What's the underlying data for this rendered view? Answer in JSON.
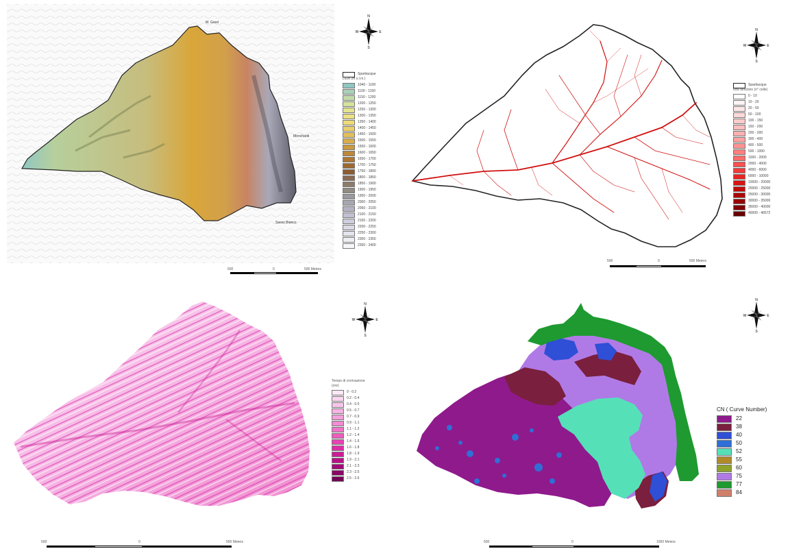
{
  "panels": {
    "elevation": {
      "legend_boundary": "Spartiacque",
      "legend_title": "DEM (m s.l.m.)",
      "classes": [
        "1040 - 1100",
        "1100 - 1150",
        "1150 - 1200",
        "1200 - 1250",
        "1250 - 1300",
        "1300 - 1350",
        "1350 - 1400",
        "1400 - 1450",
        "1450 - 1500",
        "1500 - 1550",
        "1550 - 1600",
        "1600 - 1650",
        "1650 - 1700",
        "1700 - 1750",
        "1750 - 1800",
        "1800 - 1850",
        "1850 - 1900",
        "1900 - 1950",
        "1950 - 2000",
        "2000 - 2050",
        "2050 - 2100",
        "2100 - 2150",
        "2150 - 2200",
        "2200 - 2250",
        "2250 - 2300",
        "2300 - 2350",
        "2350 - 2400"
      ],
      "colors": [
        "#8fc7c3",
        "#a9d1b8",
        "#c2dbaa",
        "#d6e39c",
        "#e4e48e",
        "#ece183",
        "#eedb78",
        "#ead06a",
        "#e2c05a",
        "#d8ad4a",
        "#cb9a3e",
        "#bd8837",
        "#ad7733",
        "#9d6931",
        "#8c5d30",
        "#8a6a52",
        "#8c7a6a",
        "#918b84",
        "#9b9aa0",
        "#a7a7b3",
        "#b4b3c4",
        "#c2c0d2",
        "#cfcedd",
        "#dad9e6",
        "#e4e4ee",
        "#eeeef5",
        "#f7f7fb"
      ],
      "place_labels": [
        "M. Greel",
        "Monchardi",
        "Sasso Bianco"
      ],
      "scale": {
        "left": "500",
        "mid": "0",
        "right": "500 Meters"
      }
    },
    "flow": {
      "legend_boundary": "Spartiacque",
      "legend_title": "flow direction (n° celle)",
      "classes": [
        "0 - 10",
        "10 - 20",
        "20 - 50",
        "50 - 100",
        "100 - 150",
        "150 - 200",
        "200 - 300",
        "300 - 400",
        "400 - 500",
        "500 - 1000",
        "1000 - 2000",
        "2000 - 4000",
        "4000 - 6000",
        "6000 - 10000",
        "10000 - 20000",
        "20000 - 25000",
        "25000 - 30000",
        "30000 - 35000",
        "35000 - 40000",
        "40000 - 46572"
      ],
      "colors": [
        "#ffffff",
        "#fff4f4",
        "#ffe7e7",
        "#ffd9d9",
        "#ffcccc",
        "#ffbebe",
        "#ffb0b0",
        "#ffa2a2",
        "#ff9494",
        "#ff7f7f",
        "#ff6a6a",
        "#fa5050",
        "#f33a3a",
        "#e82424",
        "#d81414",
        "#c40a0a",
        "#ae0606",
        "#980404",
        "#800202",
        "#680000"
      ],
      "scale": {
        "left": "500",
        "mid": "0",
        "right": "500 Meters"
      }
    },
    "concentration": {
      "legend_title": "Tempo di corrivazione",
      "legend_unit": "(ore)",
      "classes": [
        "0 - 0.2",
        "0.2 - 0.4",
        "0.4 - 0.5",
        "0.5 - 0.7",
        "0.7 - 0.9",
        "0.9 - 1.1",
        "1.1 - 1.2",
        "1.2 - 1.4",
        "1.4 - 1.6",
        "1.6 - 1.8",
        "1.8 - 1.9",
        "1.9 - 2.1",
        "2.1 - 2.3",
        "2.3 - 2.5",
        "2.5 - 2.6"
      ],
      "colors": [
        "#fce8f6",
        "#fad6f0",
        "#f8c5ea",
        "#f6b3e3",
        "#f4a0dc",
        "#f28bd3",
        "#ef74c9",
        "#ec5cbe",
        "#e544b2",
        "#db2ea6",
        "#cc1c98",
        "#b90f88",
        "#a20a77",
        "#8a0766",
        "#730556"
      ],
      "scale": {
        "left": "500",
        "mid": "0",
        "right": "500 Meters"
      }
    },
    "curve_number": {
      "legend_title": "CN    ( Curve Number)",
      "classes": [
        "22",
        "38",
        "40",
        "50",
        "52",
        "55",
        "60",
        "75",
        "77",
        "84"
      ],
      "colors": [
        "#8f1a8c",
        "#7a1f3d",
        "#2e4fd6",
        "#2f6fd6",
        "#56e0b8",
        "#b08a2a",
        "#8fa22b",
        "#b07ae6",
        "#1e9a30",
        "#d0806a"
      ],
      "scale": {
        "left": "500",
        "mid": "0",
        "right": "1000 Meters"
      }
    }
  },
  "compass": {
    "n": "N",
    "s": "S",
    "e": "E",
    "w": "W"
  }
}
